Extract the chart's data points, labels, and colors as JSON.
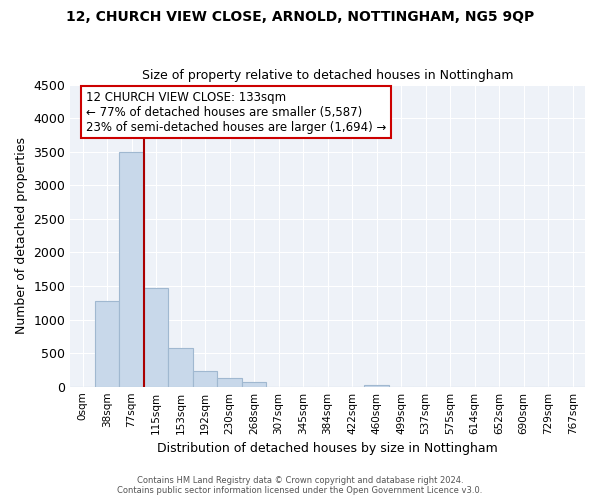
{
  "title": "12, CHURCH VIEW CLOSE, ARNOLD, NOTTINGHAM, NG5 9QP",
  "subtitle": "Size of property relative to detached houses in Nottingham",
  "xlabel": "Distribution of detached houses by size in Nottingham",
  "ylabel": "Number of detached properties",
  "bar_labels": [
    "0sqm",
    "38sqm",
    "77sqm",
    "115sqm",
    "153sqm",
    "192sqm",
    "230sqm",
    "268sqm",
    "307sqm",
    "345sqm",
    "384sqm",
    "422sqm",
    "460sqm",
    "499sqm",
    "537sqm",
    "575sqm",
    "614sqm",
    "652sqm",
    "690sqm",
    "729sqm",
    "767sqm"
  ],
  "bar_values": [
    0,
    1280,
    3500,
    1470,
    570,
    240,
    130,
    70,
    0,
    0,
    0,
    0,
    30,
    0,
    0,
    0,
    0,
    0,
    0,
    0,
    0
  ],
  "bar_color": "#c8d8ea",
  "bar_edge_color": "#a0b8d0",
  "vline_bar_index": 3,
  "vline_color": "#aa0000",
  "ylim": [
    0,
    4500
  ],
  "yticks": [
    0,
    500,
    1000,
    1500,
    2000,
    2500,
    3000,
    3500,
    4000,
    4500
  ],
  "annotation_title": "12 CHURCH VIEW CLOSE: 133sqm",
  "annotation_line1": "← 77% of detached houses are smaller (5,587)",
  "annotation_line2": "23% of semi-detached houses are larger (1,694) →",
  "annotation_box_color": "#ffffff",
  "annotation_box_edge": "#cc0000",
  "footer_line1": "Contains HM Land Registry data © Crown copyright and database right 2024.",
  "footer_line2": "Contains public sector information licensed under the Open Government Licence v3.0.",
  "bg_color": "#ffffff",
  "plot_bg_color": "#eef2f8",
  "grid_color": "#ffffff"
}
